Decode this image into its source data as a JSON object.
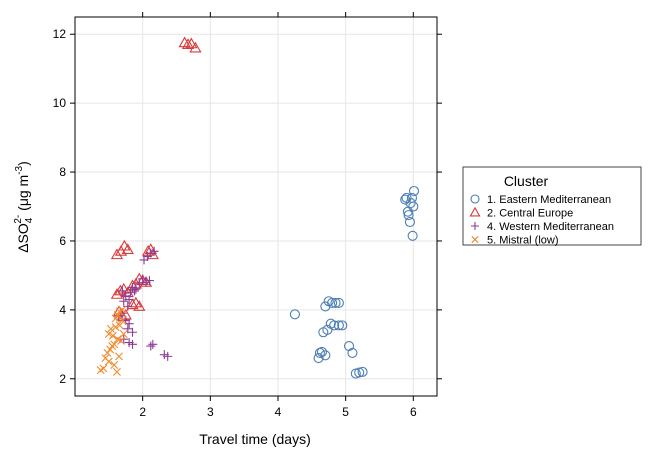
{
  "chart_data": {
    "type": "scatter",
    "xlabel": "Travel time (days)",
    "ylabel": "ΔSO₄²⁻ (μg m⁻³)",
    "ylabel_parts": {
      "prefix": "ΔSO",
      "sub": "4",
      "sup": "2-",
      "unit_open": " (μg m",
      "unit_sup": "-3",
      "unit_close": ")"
    },
    "xlim": [
      1.0,
      6.35
    ],
    "ylim": [
      1.5,
      12.5
    ],
    "xticks": [
      2,
      3,
      4,
      5,
      6
    ],
    "yticks": [
      2,
      4,
      6,
      8,
      10,
      12
    ],
    "grid": true,
    "legend_title": "Cluster",
    "legend_position": "right",
    "series": [
      {
        "name": "1. Eastern Mediterranean",
        "marker": "circle",
        "color": "#4a7db5",
        "points": [
          [
            4.25,
            3.87
          ],
          [
            4.6,
            2.6
          ],
          [
            4.62,
            2.75
          ],
          [
            4.65,
            2.78
          ],
          [
            4.7,
            2.68
          ],
          [
            4.67,
            3.35
          ],
          [
            4.73,
            3.42
          ],
          [
            4.78,
            3.6
          ],
          [
            4.83,
            3.55
          ],
          [
            4.9,
            3.55
          ],
          [
            4.95,
            3.55
          ],
          [
            4.7,
            4.1
          ],
          [
            4.75,
            4.25
          ],
          [
            4.8,
            4.2
          ],
          [
            4.85,
            4.2
          ],
          [
            4.9,
            4.2
          ],
          [
            5.05,
            2.95
          ],
          [
            5.1,
            2.75
          ],
          [
            5.15,
            2.15
          ],
          [
            5.2,
            2.18
          ],
          [
            5.25,
            2.2
          ],
          [
            5.88,
            7.2
          ],
          [
            5.9,
            7.25
          ],
          [
            5.92,
            6.85
          ],
          [
            5.93,
            6.75
          ],
          [
            5.95,
            6.55
          ],
          [
            5.96,
            7.1
          ],
          [
            5.98,
            7.25
          ],
          [
            6.0,
            7.0
          ],
          [
            6.01,
            7.45
          ],
          [
            5.99,
            6.15
          ]
        ]
      },
      {
        "name": "2. Central Europe",
        "marker": "triangle",
        "color": "#d93a3a",
        "points": [
          [
            2.62,
            11.75
          ],
          [
            2.67,
            11.7
          ],
          [
            2.72,
            11.72
          ],
          [
            2.78,
            11.6
          ],
          [
            1.62,
            5.6
          ],
          [
            1.68,
            5.7
          ],
          [
            1.73,
            5.85
          ],
          [
            1.78,
            5.75
          ],
          [
            2.08,
            5.7
          ],
          [
            2.12,
            5.75
          ],
          [
            2.15,
            5.6
          ],
          [
            1.62,
            4.45
          ],
          [
            1.67,
            4.55
          ],
          [
            1.72,
            4.6
          ],
          [
            1.78,
            4.5
          ],
          [
            1.85,
            4.7
          ],
          [
            1.9,
            4.75
          ],
          [
            1.95,
            4.9
          ],
          [
            2.0,
            4.85
          ],
          [
            2.05,
            4.8
          ],
          [
            1.65,
            3.95
          ],
          [
            1.7,
            3.8
          ],
          [
            1.75,
            3.85
          ],
          [
            1.85,
            4.15
          ],
          [
            1.9,
            4.2
          ],
          [
            1.95,
            4.1
          ]
        ]
      },
      {
        "name": "4. Western Mediterranean",
        "marker": "plus",
        "color": "#8e3d96",
        "points": [
          [
            1.7,
            4.55
          ],
          [
            1.75,
            4.4
          ],
          [
            1.8,
            4.3
          ],
          [
            1.72,
            4.25
          ],
          [
            1.78,
            4.1
          ],
          [
            1.85,
            4.65
          ],
          [
            1.9,
            4.6
          ],
          [
            1.95,
            4.75
          ],
          [
            2.0,
            4.9
          ],
          [
            2.05,
            4.8
          ],
          [
            2.1,
            4.85
          ],
          [
            1.82,
            4.5
          ],
          [
            1.88,
            4.55
          ],
          [
            2.02,
            5.45
          ],
          [
            2.07,
            5.55
          ],
          [
            2.12,
            5.65
          ],
          [
            2.17,
            5.7
          ],
          [
            1.65,
            3.8
          ],
          [
            1.7,
            3.9
          ],
          [
            1.75,
            3.7
          ],
          [
            1.8,
            3.6
          ],
          [
            1.85,
            3.35
          ],
          [
            1.78,
            3.45
          ],
          [
            1.72,
            3.15
          ],
          [
            1.8,
            3.05
          ],
          [
            1.85,
            3.0
          ],
          [
            2.12,
            2.95
          ],
          [
            2.15,
            3.0
          ],
          [
            2.32,
            2.7
          ],
          [
            2.37,
            2.65
          ]
        ]
      },
      {
        "name": "5. Mistral (low)",
        "marker": "cross",
        "color": "#f08a2c",
        "points": [
          [
            1.38,
            2.25
          ],
          [
            1.42,
            2.3
          ],
          [
            1.45,
            2.6
          ],
          [
            1.48,
            2.75
          ],
          [
            1.5,
            2.5
          ],
          [
            1.52,
            2.85
          ],
          [
            1.55,
            2.95
          ],
          [
            1.58,
            2.4
          ],
          [
            1.62,
            2.2
          ],
          [
            1.65,
            2.65
          ],
          [
            1.5,
            3.3
          ],
          [
            1.53,
            3.45
          ],
          [
            1.56,
            3.25
          ],
          [
            1.6,
            3.5
          ],
          [
            1.63,
            3.15
          ],
          [
            1.66,
            3.55
          ],
          [
            1.68,
            3.1
          ],
          [
            1.7,
            3.7
          ],
          [
            1.72,
            3.3
          ],
          [
            1.58,
            3.0
          ],
          [
            1.6,
            3.75
          ],
          [
            1.63,
            3.85
          ],
          [
            1.66,
            3.95
          ],
          [
            1.7,
            4.0
          ]
        ]
      }
    ]
  }
}
